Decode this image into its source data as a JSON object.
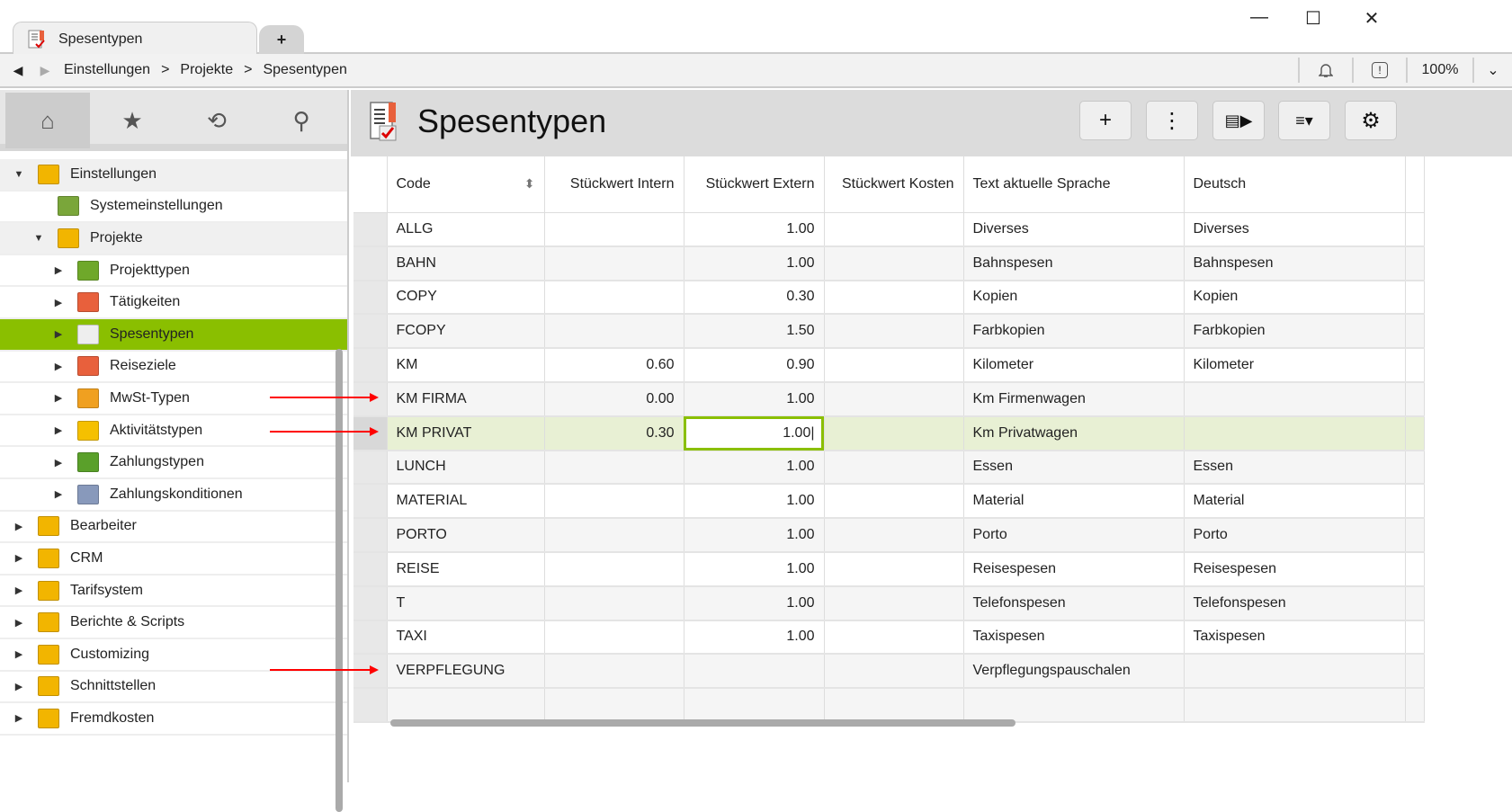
{
  "window": {
    "tab_title": "Spesentypen",
    "new_tab": "+",
    "minimize": "—",
    "maximize": "☐",
    "close": "✕"
  },
  "nav": {
    "back": "◀",
    "forward": "▶",
    "breadcrumb": [
      "Einstellungen",
      "Projekte",
      "Spesentypen"
    ],
    "separator": ">",
    "zoom": "100%",
    "bell": "🔔",
    "alert": "!",
    "dropdown": "⌄"
  },
  "sidebar": {
    "tabs": [
      {
        "icon": "home-icon",
        "glyph": "⌂"
      },
      {
        "icon": "star-icon",
        "glyph": "★"
      },
      {
        "icon": "history-icon",
        "glyph": "⟲"
      },
      {
        "icon": "search-icon",
        "glyph": "⚲"
      }
    ],
    "tree": [
      {
        "label": "Einstellungen",
        "level": 0,
        "state": "open",
        "color": "#f2b500"
      },
      {
        "label": "Systemeinstellungen",
        "level": 1,
        "state": "leaf",
        "color": "#7aa63a"
      },
      {
        "label": "Projekte",
        "level": 1,
        "state": "open",
        "color": "#f2b500"
      },
      {
        "label": "Projekttypen",
        "level": 2,
        "state": "closed",
        "color": "#6fa82a"
      },
      {
        "label": "Tätigkeiten",
        "level": 2,
        "state": "closed",
        "color": "#e8603c"
      },
      {
        "label": "Spesentypen",
        "level": 2,
        "state": "closed",
        "color": "#eeeeee",
        "selected": true
      },
      {
        "label": "Reiseziele",
        "level": 2,
        "state": "closed",
        "color": "#e8603c"
      },
      {
        "label": "MwSt-Typen",
        "level": 2,
        "state": "closed",
        "color": "#f0a020"
      },
      {
        "label": "Aktivitätstypen",
        "level": 2,
        "state": "closed",
        "color": "#f5c000"
      },
      {
        "label": "Zahlungstypen",
        "level": 2,
        "state": "closed",
        "color": "#5aa02a"
      },
      {
        "label": "Zahlungskonditionen",
        "level": 2,
        "state": "closed",
        "color": "#8899bb"
      },
      {
        "label": "Bearbeiter",
        "level": 0,
        "state": "closed",
        "color": "#f2b500"
      },
      {
        "label": "CRM",
        "level": 0,
        "state": "closed",
        "color": "#f2b500"
      },
      {
        "label": "Tarifsystem",
        "level": 0,
        "state": "closed",
        "color": "#f2b500"
      },
      {
        "label": "Berichte & Scripts",
        "level": 0,
        "state": "closed",
        "color": "#f2b500"
      },
      {
        "label": "Customizing",
        "level": 0,
        "state": "closed",
        "color": "#f2b500"
      },
      {
        "label": "Schnittstellen",
        "level": 0,
        "state": "closed",
        "color": "#f2b500"
      },
      {
        "label": "Fremdkosten",
        "level": 0,
        "state": "closed",
        "color": "#f2b500"
      }
    ]
  },
  "main": {
    "title": "Spesentypen",
    "toolbar": [
      {
        "name": "add-button",
        "glyph": "+"
      },
      {
        "name": "more-button",
        "glyph": "⋮"
      },
      {
        "name": "detail-panel-button",
        "glyph": "▤▶"
      },
      {
        "name": "sort-menu-button",
        "glyph": "≡▾"
      },
      {
        "name": "settings-button",
        "glyph": "⚙"
      }
    ],
    "columns": [
      "Code",
      "Stückwert Intern",
      "Stückwert Extern",
      "Stückwert Kosten",
      "Text aktuelle Sprache",
      "Deutsch"
    ],
    "rows": [
      [
        "ALLG",
        "",
        "1.00",
        "",
        "Diverses",
        "Diverses"
      ],
      [
        "BAHN",
        "",
        "1.00",
        "",
        "Bahnspesen",
        "Bahnspesen"
      ],
      [
        "COPY",
        "",
        "0.30",
        "",
        "Kopien",
        "Kopien"
      ],
      [
        "FCOPY",
        "",
        "1.50",
        "",
        "Farbkopien",
        "Farbkopien"
      ],
      [
        "KM",
        "0.60",
        "0.90",
        "",
        "Kilometer",
        "Kilometer"
      ],
      [
        "KM FIRMA",
        "0.00",
        "1.00",
        "",
        "Km Firmenwagen",
        ""
      ],
      [
        "KM PRIVAT",
        "0.30",
        "1.00",
        "",
        "Km Privatwagen",
        ""
      ],
      [
        "LUNCH",
        "",
        "1.00",
        "",
        "Essen",
        "Essen"
      ],
      [
        "MATERIAL",
        "",
        "1.00",
        "",
        "Material",
        "Material"
      ],
      [
        "PORTO",
        "",
        "1.00",
        "",
        "Porto",
        "Porto"
      ],
      [
        "REISE",
        "",
        "1.00",
        "",
        "Reisespesen",
        "Reisespesen"
      ],
      [
        "T",
        "",
        "1.00",
        "",
        "Telefonspesen",
        "Telefonspesen"
      ],
      [
        "TAXI",
        "",
        "1.00",
        "",
        "Taxispesen",
        "Taxispesen"
      ],
      [
        "VERPFLEGUNG",
        "",
        "",
        "",
        "Verpflegungspauschalen",
        ""
      ]
    ],
    "selected_row": 6,
    "editing_column": 2,
    "colors": {
      "accent": "#8abf00",
      "selected_row": "#e8f0d4",
      "annotation": "#ff0000"
    }
  }
}
